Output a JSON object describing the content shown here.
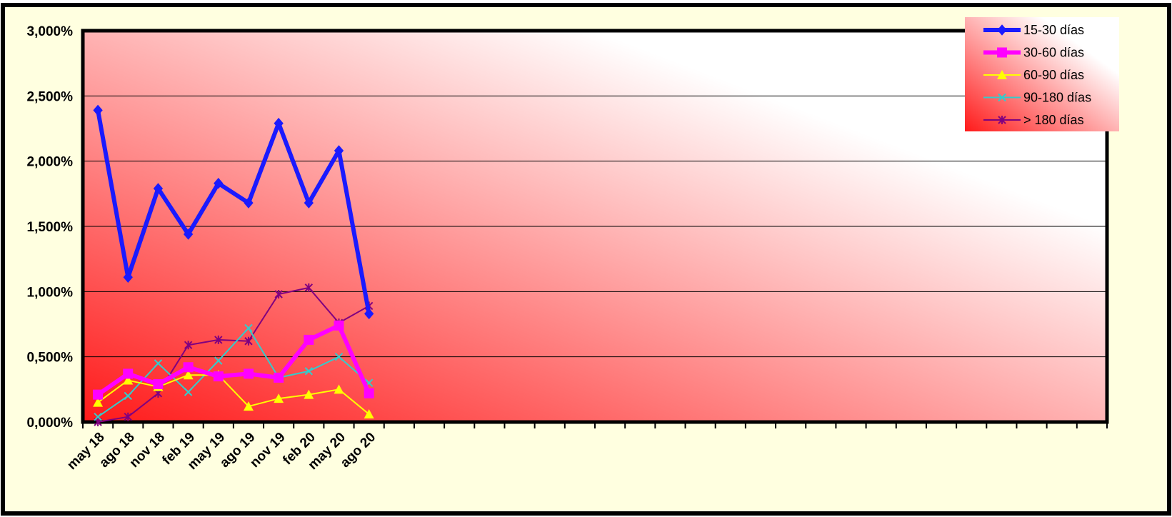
{
  "chart_data": {
    "type": "line",
    "title": "",
    "xlabel": "",
    "ylabel": "",
    "categories": [
      "may 18",
      "ago 18",
      "nov 18",
      "feb 19",
      "may 19",
      "ago 19",
      "nov 19",
      "feb 20",
      "may 20",
      "ago 20"
    ],
    "category_slots": 34,
    "ylim": [
      0,
      3
    ],
    "y_ticks": [
      {
        "value": 0,
        "label": "0,000%"
      },
      {
        "value": 0.5,
        "label": "0,500%"
      },
      {
        "value": 1.0,
        "label": "1,000%"
      },
      {
        "value": 1.5,
        "label": "1,500%"
      },
      {
        "value": 2.0,
        "label": "2,000%"
      },
      {
        "value": 2.5,
        "label": "2,500%"
      },
      {
        "value": 3.0,
        "label": "3,000%"
      }
    ],
    "grid": true,
    "legend_position": "top-right",
    "series": [
      {
        "name": "15-30 días",
        "color": "#1a1aff",
        "marker": "diamond",
        "line_width": "thick",
        "values": [
          2.39,
          1.11,
          1.79,
          1.44,
          1.83,
          1.68,
          2.29,
          1.68,
          2.08,
          0.83
        ]
      },
      {
        "name": "30-60 días",
        "color": "#ff00ff",
        "marker": "square",
        "line_width": "thick",
        "values": [
          0.21,
          0.37,
          0.29,
          0.42,
          0.35,
          0.37,
          0.34,
          0.63,
          0.74,
          0.22
        ]
      },
      {
        "name": "60-90 días",
        "color": "#ffff00",
        "marker": "triangle",
        "line_width": "thin",
        "values": [
          0.15,
          0.32,
          0.27,
          0.36,
          0.36,
          0.12,
          0.18,
          0.21,
          0.25,
          0.06
        ]
      },
      {
        "name": "90-180 días",
        "color": "#33cccc",
        "marker": "x",
        "line_width": "thin",
        "values": [
          0.04,
          0.2,
          0.45,
          0.23,
          0.47,
          0.72,
          0.34,
          0.39,
          0.5,
          0.3
        ]
      },
      {
        "name": "> 180 días",
        "color": "#800080",
        "marker": "star",
        "line_width": "thin",
        "values": [
          0.0,
          0.04,
          0.22,
          0.59,
          0.63,
          0.62,
          0.98,
          1.03,
          0.76,
          0.89
        ]
      }
    ]
  },
  "colors": {
    "frame_background": "#ffffe0",
    "plot_gradient_strong": "#ff1a1a",
    "plot_gradient_light": "#ffffff",
    "legend_gradient_strong": "#ff1a1a",
    "axis": "#000000",
    "gridline": "#000000"
  }
}
